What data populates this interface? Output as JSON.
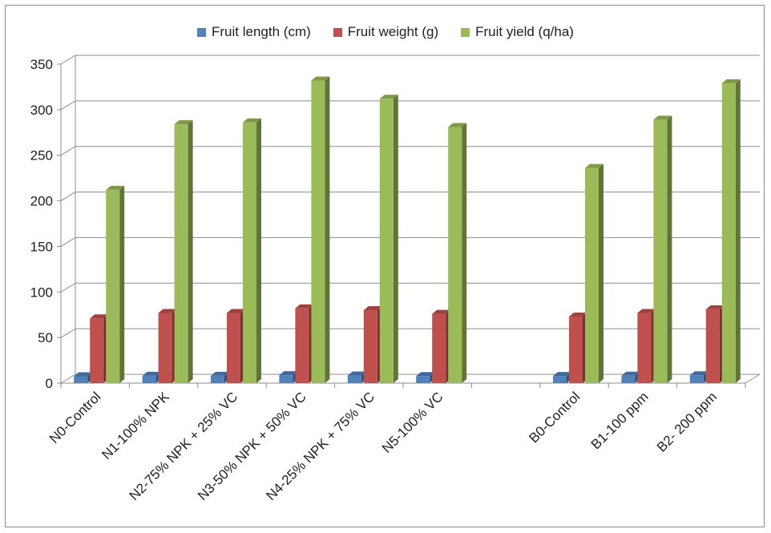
{
  "chart_data": {
    "type": "bar",
    "categories": [
      "N0-Control",
      "N1-100% NPK",
      "N2-75% NPK + 25% VC",
      "N3-50% NPK + 50% VC",
      "N4-25% NPK + 75% VC",
      "N5-100% VC",
      "",
      "B0-Control",
      "B1-100 ppm",
      "B2- 200 ppm"
    ],
    "series": [
      {
        "name": "Fruit length (cm)",
        "color": "#4f81bd",
        "values": [
          7.5,
          8.0,
          8.0,
          8.7,
          8.3,
          7.7,
          null,
          7.8,
          8.1,
          8.6
        ]
      },
      {
        "name": "Fruit weight (g)",
        "color": "#c0504d",
        "values": [
          71,
          77,
          77,
          82,
          80,
          76,
          null,
          73,
          77,
          81
        ]
      },
      {
        "name": "Fruit yield (q/ha)",
        "color": "#9bbb59",
        "values": [
          212,
          284,
          286,
          332,
          312,
          281,
          null,
          236,
          289,
          329
        ]
      }
    ],
    "ylim": [
      0,
      350
    ],
    "yticks": [
      0,
      50,
      100,
      150,
      200,
      250,
      300,
      350
    ],
    "grid": true,
    "legend_position": "top",
    "title": "",
    "xlabel": "",
    "ylabel": ""
  }
}
